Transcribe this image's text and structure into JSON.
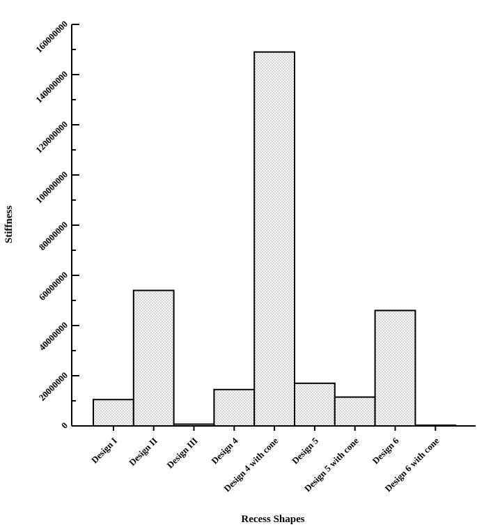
{
  "chart_data": {
    "type": "bar",
    "title": "",
    "xlabel": "Recess Shapes",
    "ylabel": "Stiffness",
    "categories": [
      "Design I",
      "Design II",
      "Design III",
      "Design 4",
      "Design 4 with cone",
      "Design 5",
      "Design 5 with cone",
      "Design 6",
      "Design 6 with cone"
    ],
    "values": [
      10500000,
      54000000,
      700000,
      14500000,
      149000000,
      17000000,
      11500000,
      46000000,
      200000
    ],
    "ylim": [
      0,
      160000000
    ],
    "yticks": [
      0,
      20000000,
      40000000,
      60000000,
      80000000,
      100000000,
      120000000,
      140000000,
      160000000
    ],
    "ytick_labels": [
      "0",
      "20000000",
      "40000000",
      "60000000",
      "80000000",
      "100000000",
      "120000000",
      "140000000",
      "160000000"
    ],
    "grid": false,
    "bar_fill": "dotted",
    "bar_stroke_color": "#000000",
    "bar_fill_color": "#f4f4f4"
  }
}
